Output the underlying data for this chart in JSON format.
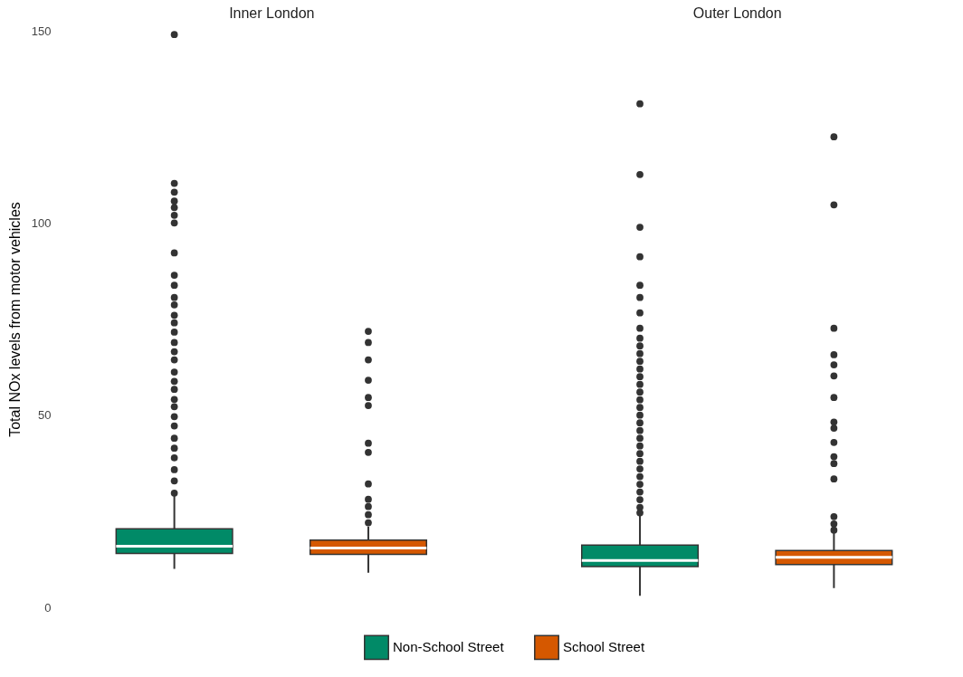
{
  "chart_data": {
    "type": "box",
    "ylabel": "Total NOx levels from motor vehicles",
    "categories": [
      "Inner London",
      "Outer London"
    ],
    "ylim": [
      0,
      150
    ],
    "yticks": [
      0,
      50,
      100,
      150
    ],
    "legend": "bottom",
    "series": [
      {
        "name": "Non-School Street",
        "color": "#018a67",
        "boxes": [
          {
            "low": 10,
            "q1": 14,
            "median": 15.9,
            "q3": 20.4,
            "high": 29,
            "outliers": [
              149,
              110.3,
              108,
              105.7,
              104,
              102,
              100,
              92.2,
              86.4,
              83.8,
              80.6,
              78.7,
              76,
              74,
              71.6,
              68.9,
              66.5,
              64.4,
              61.2,
              58.8,
              56.7,
              54.1,
              52.2,
              49.6,
              47.2,
              44,
              41.4,
              38.9,
              35.8,
              32.9,
              29.7
            ]
          },
          {
            "low": 3,
            "q1": 10.6,
            "median": 12.2,
            "q3": 16.2,
            "high": 24,
            "outliers": [
              131,
              112.6,
              98.9,
              91.2,
              83.8,
              80.6,
              76.6,
              72.6,
              70,
              68,
              66,
              64,
              62,
              60,
              58,
              56,
              54,
              52,
              50,
              48,
              46,
              44,
              42,
              40,
              38,
              36,
              34,
              32,
              30,
              28,
              26,
              24.6
            ]
          }
        ]
      },
      {
        "name": "School Street",
        "color": "#d55800",
        "boxes": [
          {
            "low": 9,
            "q1": 13.8,
            "median": 15.4,
            "q3": 17.5,
            "high": 21,
            "outliers": [
              71.8,
              68.9,
              64.4,
              59.1,
              54.6,
              52.5,
              42.7,
              40.3,
              32.1,
              28.1,
              26.2,
              24.1,
              22
            ]
          },
          {
            "low": 5,
            "q1": 11.1,
            "median": 13,
            "q3": 14.8,
            "high": 19.5,
            "outliers": [
              122.4,
              104.7,
              72.6,
              65.7,
              63.1,
              60.2,
              54.6,
              48.2,
              46.6,
              42.9,
              39.2,
              37.4,
              33.4,
              23.6,
              21.7,
              20.1
            ]
          }
        ]
      }
    ]
  }
}
